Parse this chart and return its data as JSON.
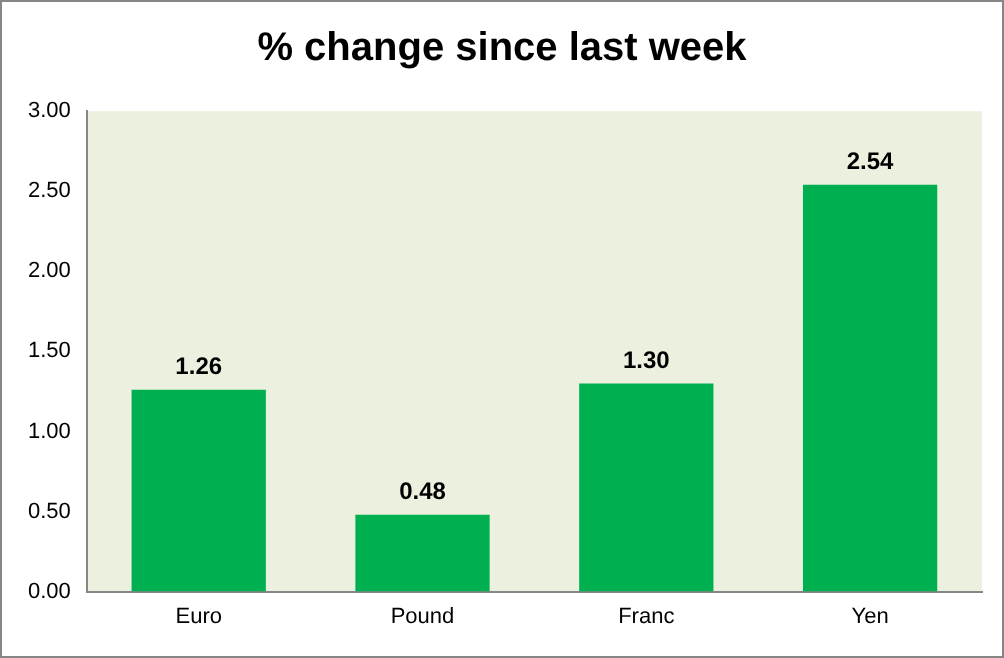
{
  "chart_data": {
    "type": "bar",
    "title": "% change since last week",
    "categories": [
      "Euro",
      "Pound",
      "Franc",
      "Yen"
    ],
    "values": [
      1.26,
      0.48,
      1.3,
      2.54
    ],
    "value_labels": [
      "1.26",
      "0.48",
      "1.30",
      "2.54"
    ],
    "color": "#00b050",
    "ylim": [
      0,
      3
    ],
    "yticks": [
      {
        "value": 0,
        "label": "0.00"
      },
      {
        "value": 0.5,
        "label": "0.50"
      },
      {
        "value": 1,
        "label": "1.00"
      },
      {
        "value": 1.5,
        "label": "1.50"
      },
      {
        "value": 2,
        "label": "2.00"
      },
      {
        "value": 2.5,
        "label": "2.50"
      },
      {
        "value": 3,
        "label": "3.00"
      }
    ],
    "grid": false,
    "legend": false
  }
}
